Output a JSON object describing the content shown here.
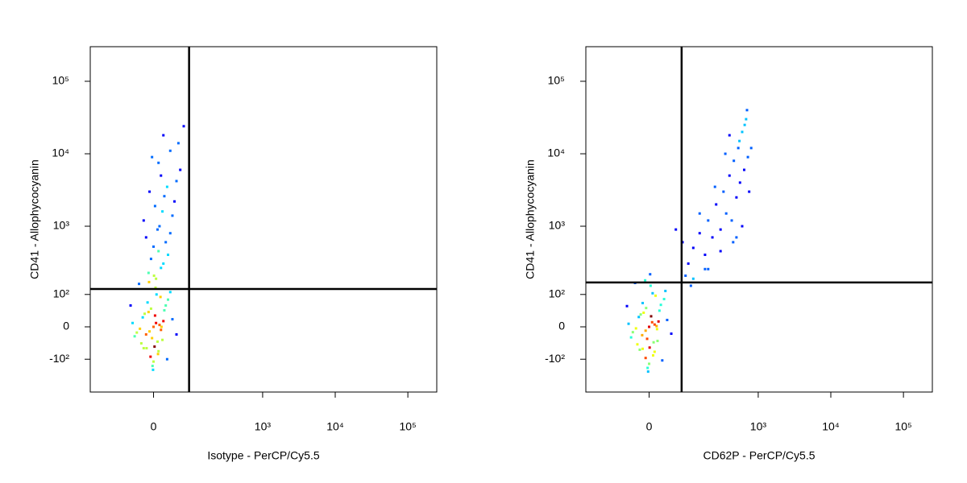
{
  "chart_data": [
    {
      "type": "scatter",
      "xlabel": "Isotype - PerCP/Cy5.5",
      "ylabel": "CD41 - Allophycocyanin",
      "xscale": "biexponential",
      "yscale": "biexponential",
      "xlim": [
        -230,
        250000
      ],
      "ylim": [
        -320,
        300000
      ],
      "xticks": [
        0,
        {
          "value": 1000,
          "label": "10³"
        },
        {
          "value": 10000,
          "label": "10⁴"
        },
        {
          "value": 100000,
          "label": "10⁵"
        }
      ],
      "yticks": [
        {
          "value": -100,
          "label": "-10²"
        },
        0,
        {
          "value": 100,
          "label": "10²"
        },
        {
          "value": 1000,
          "label": "10³"
        },
        {
          "value": 10000,
          "label": "10⁴"
        },
        {
          "value": 100000,
          "label": "10⁵"
        }
      ],
      "gate_x": 87,
      "gate_y": 124,
      "x": [
        0,
        5,
        -8,
        12,
        -15,
        3,
        -3,
        20,
        -22,
        8,
        -10,
        15,
        -5,
        2,
        25,
        -28,
        10,
        -12,
        30,
        -35,
        6,
        -6,
        18,
        -18,
        40,
        -40,
        0,
        4,
        -2,
        14,
        -14,
        22,
        -25,
        35,
        -45,
        50,
        -50,
        9,
        -9,
        1,
        -1,
        28,
        -30,
        16,
        -20,
        5,
        -10,
        15,
        20,
        -5,
        30,
        10,
        0,
        25,
        -15,
        35,
        8,
        12,
        -20,
        40,
        18,
        3,
        45,
        22,
        -8,
        28,
        50,
        15,
        60,
        10,
        -3,
        35,
        55,
        20,
        70
      ],
      "y": [
        0,
        10,
        -12,
        5,
        -20,
        30,
        -30,
        15,
        25,
        -40,
        40,
        -8,
        50,
        -55,
        60,
        -5,
        -70,
        70,
        80,
        -15,
        100,
        -90,
        -35,
        35,
        20,
        -25,
        -110,
        130,
        -130,
        90,
        -60,
        45,
        -45,
        110,
        10,
        -20,
        60,
        -80,
        160,
        200,
        -150,
        -100,
        150,
        0,
        -60,
        180,
        220,
        260,
        300,
        350,
        400,
        450,
        520,
        600,
        700,
        800,
        900,
        1000,
        1200,
        1400,
        1600,
        1900,
        2200,
        2600,
        3000,
        3500,
        4200,
        5000,
        6000,
        7500,
        9000,
        11000,
        14000,
        18000,
        24000
      ]
    },
    {
      "type": "scatter",
      "xlabel": "CD62P - PerCP/Cy5.5",
      "ylabel": "CD41 - Allophycocyanin",
      "xscale": "biexponential",
      "yscale": "biexponential",
      "xlim": [
        -230,
        250000
      ],
      "ylim": [
        -320,
        300000
      ],
      "xticks": [
        0,
        {
          "value": 1000,
          "label": "10³"
        },
        {
          "value": 10000,
          "label": "10⁴"
        },
        {
          "value": 100000,
          "label": "10⁵"
        }
      ],
      "yticks": [
        {
          "value": -100,
          "label": "-10²"
        },
        0,
        {
          "value": 100,
          "label": "10²"
        },
        {
          "value": 1000,
          "label": "10³"
        },
        {
          "value": 10000,
          "label": "10⁴"
        },
        {
          "value": 100000,
          "label": "10⁵"
        }
      ],
      "gate_x": 77,
      "gate_y": 158,
      "x": [
        0,
        6,
        -7,
        11,
        -14,
        4,
        -4,
        19,
        -21,
        9,
        -11,
        16,
        -6,
        1,
        24,
        -27,
        11,
        -13,
        31,
        -34,
        7,
        -7,
        17,
        -17,
        38,
        -38,
        0,
        3,
        -3,
        13,
        -13,
        21,
        -24,
        34,
        -44,
        48,
        -48,
        8,
        -8,
        2,
        -2,
        27,
        -29,
        15,
        -19,
        100,
        120,
        150,
        180,
        200,
        230,
        260,
        300,
        330,
        360,
        400,
        430,
        460,
        500,
        530,
        560,
        600,
        640,
        680,
        720,
        150,
        250,
        350,
        450,
        550,
        650,
        750,
        200,
        300,
        400,
        500,
        600,
        700,
        800,
        120,
        180,
        90,
        80,
        60,
        110
      ],
      "y": [
        0,
        12,
        -10,
        6,
        -22,
        28,
        -32,
        14,
        26,
        -42,
        38,
        -6,
        52,
        -58,
        62,
        -4,
        -72,
        68,
        82,
        -14,
        105,
        -95,
        -38,
        33,
        18,
        -28,
        -120,
        140,
        -140,
        95,
        -62,
        44,
        -48,
        115,
        8,
        -18,
        58,
        -85,
        170,
        210,
        -160,
        -105,
        155,
        2,
        -65,
        300,
        500,
        800,
        400,
        1200,
        700,
        2000,
        900,
        3000,
        1500,
        5000,
        1200,
        8000,
        2500,
        12000,
        4000,
        20000,
        6000,
        30000,
        9000,
        1500,
        3500,
        10000,
        600,
        15000,
        25000,
        3000,
        250,
        450,
        18000,
        700,
        1000,
        40000,
        12000,
        180,
        250,
        200,
        600,
        900,
        140
      ]
    }
  ]
}
